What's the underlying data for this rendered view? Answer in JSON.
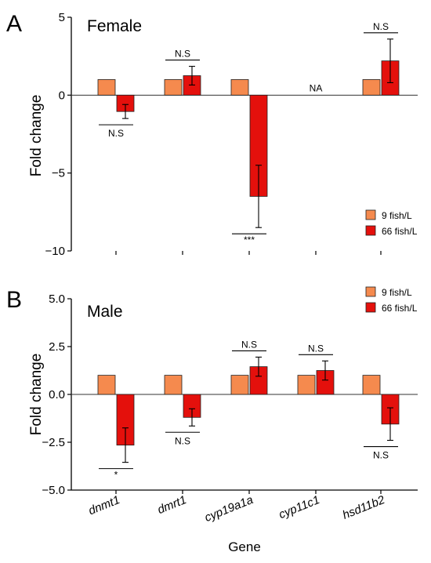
{
  "colors": {
    "low": "#F58A4E",
    "high": "#E4100C",
    "axis": "#000000",
    "bar_stroke": "#222222"
  },
  "chart_data": [
    {
      "type": "bar",
      "panel": "A",
      "title": "Female",
      "ylabel": "Fold change",
      "xlabel": "",
      "ylim": [
        -10,
        5
      ],
      "yticks": [
        5,
        0,
        -5,
        -10
      ],
      "ytick_labels": [
        "5",
        "0",
        "−5",
        "−10"
      ],
      "legend": {
        "position": "bottom-right"
      },
      "categories": [
        "dnmt1",
        "dmrt1",
        "cyp19a1a",
        "cyp11c1",
        "hsd11b2"
      ],
      "series": [
        {
          "name": "9 fish/L",
          "values": [
            1,
            1,
            1,
            null,
            1
          ],
          "errors": [
            null,
            null,
            null,
            null,
            null
          ]
        },
        {
          "name": "66 fish/L",
          "values": [
            -1.05,
            1.25,
            -6.5,
            null,
            2.2
          ],
          "errors": [
            0.45,
            0.6,
            2.0,
            null,
            1.4
          ]
        }
      ],
      "annotations": [
        {
          "category": "dnmt1",
          "text": "N.S",
          "side": "below"
        },
        {
          "category": "dmrt1",
          "text": "N.S",
          "side": "above"
        },
        {
          "category": "cyp19a1a",
          "text": "***",
          "side": "below"
        },
        {
          "category": "cyp11c1",
          "text": "NA",
          "side": "na"
        },
        {
          "category": "hsd11b2",
          "text": "N.S",
          "side": "above"
        }
      ]
    },
    {
      "type": "bar",
      "panel": "B",
      "title": "Male",
      "ylabel": "Fold change",
      "xlabel": "Gene",
      "ylim": [
        -5,
        5
      ],
      "yticks": [
        5,
        2.5,
        0,
        -2.5,
        -5
      ],
      "ytick_labels": [
        "5.0",
        "2.5",
        "0.0",
        "−2.5",
        "−5.0"
      ],
      "legend": {
        "position": "top-right"
      },
      "categories": [
        "dnmt1",
        "dmrt1",
        "cyp19a1a",
        "cyp11c1",
        "hsd11b2"
      ],
      "series": [
        {
          "name": "9 fish/L",
          "values": [
            1,
            1,
            1,
            1,
            1
          ],
          "errors": [
            null,
            null,
            null,
            null,
            null
          ]
        },
        {
          "name": "66 fish/L",
          "values": [
            -2.65,
            -1.2,
            1.45,
            1.25,
            -1.55
          ],
          "errors": [
            0.9,
            0.45,
            0.5,
            0.5,
            0.85
          ]
        }
      ],
      "annotations": [
        {
          "category": "dnmt1",
          "text": "*",
          "side": "below"
        },
        {
          "category": "dmrt1",
          "text": "N.S",
          "side": "below"
        },
        {
          "category": "cyp19a1a",
          "text": "N.S",
          "side": "above"
        },
        {
          "category": "cyp11c1",
          "text": "N.S",
          "side": "above"
        },
        {
          "category": "hsd11b2",
          "text": "N.S",
          "side": "below"
        }
      ]
    }
  ]
}
